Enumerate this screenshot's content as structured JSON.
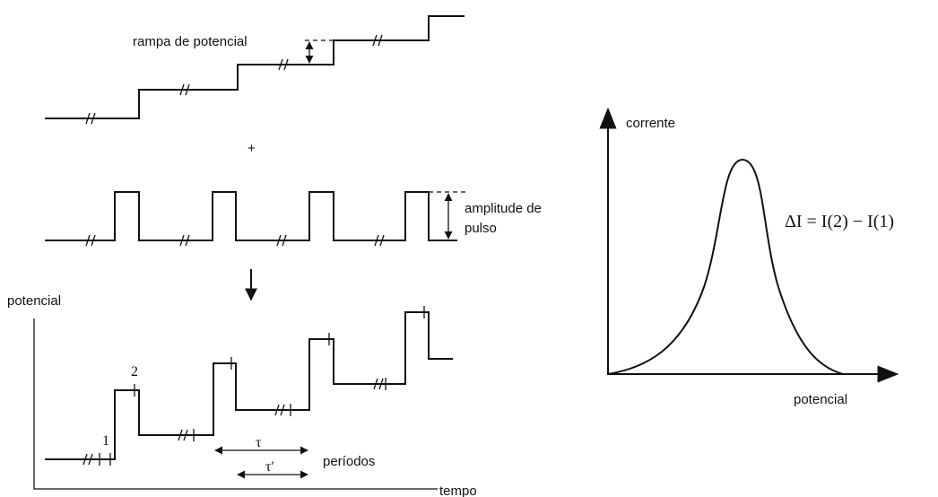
{
  "labels": {
    "ramp": "rampa de potencial",
    "plus": "+",
    "amplitude_line1": "amplitude de",
    "amplitude_line2": "pulso",
    "potential_axis": "potencial",
    "point_2": "2",
    "point_1": "1",
    "tau": "τ",
    "tau_prime": "τ′",
    "periods": "períodos",
    "time_axis": "tempo",
    "current_axis": "corrente",
    "potential_axis_right": "potencial",
    "formula": "ΔI = I(2) − I(1)"
  }
}
